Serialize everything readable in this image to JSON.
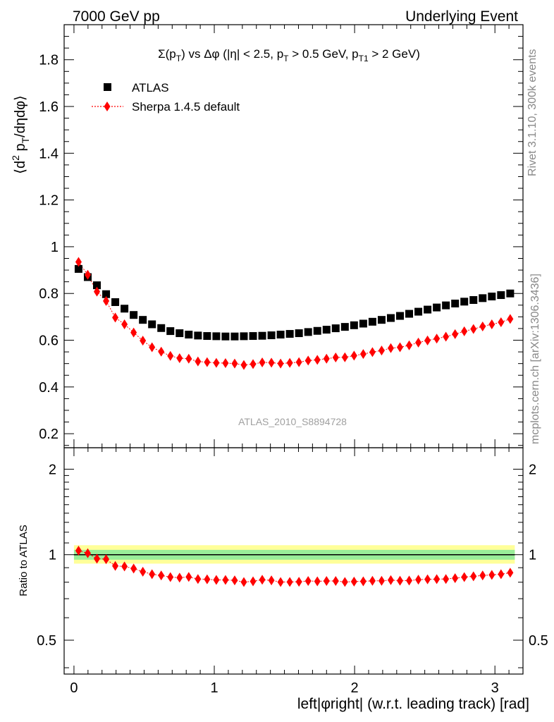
{
  "header": {
    "left": "7000 GeV pp",
    "right": "Underlying Event"
  },
  "side_labels": {
    "rivet": "Rivet 3.1.10,  300k events",
    "mcplots": "mcplots.cern.ch [arXiv:1306.3436]"
  },
  "chart_data": {
    "type": "scatter",
    "title": "Σ(p_T) vs Δφ (|η| < 2.5, p_T > 0.5 GeV, p_T1 > 2 GeV)",
    "watermark": "ATLAS_2010_S8894728",
    "xlabel": "left|φright| (w.r.t. leading track) [rad]",
    "ylabel_main": "⟨d² p_T/dηdφ⟩",
    "ylabel_ratio": "Ratio to ATLAS",
    "xlim": [
      -0.07,
      3.2
    ],
    "main_ylim": [
      0.14,
      1.95
    ],
    "ratio_ylim": [
      0.38,
      2.38
    ],
    "x_ticks": [
      0,
      1,
      2,
      3
    ],
    "main_y_ticks": [
      0.2,
      0.4,
      0.6,
      0.8,
      1,
      1.2,
      1.4,
      1.6,
      1.8
    ],
    "ratio_y_ticks": [
      0.5,
      1,
      2
    ],
    "ratio_band_inner": [
      0.96,
      1.04
    ],
    "ratio_band_outer": [
      0.93,
      1.08
    ],
    "x": [
      0.0327,
      0.0982,
      0.1636,
      0.2291,
      0.2945,
      0.36,
      0.4254,
      0.4909,
      0.5563,
      0.6218,
      0.6872,
      0.7527,
      0.8181,
      0.8836,
      0.949,
      1.0145,
      1.0799,
      1.1454,
      1.2108,
      1.2763,
      1.3417,
      1.4072,
      1.4726,
      1.5381,
      1.6035,
      1.669,
      1.7344,
      1.7999,
      1.8653,
      1.9308,
      1.9962,
      2.0617,
      2.1271,
      2.1926,
      2.258,
      2.3235,
      2.3889,
      2.4544,
      2.5198,
      2.5853,
      2.6507,
      2.7162,
      2.7816,
      2.8471,
      2.9125,
      2.978,
      3.0434,
      3.1089
    ],
    "series": [
      {
        "name": "ATLAS",
        "color": "#000000",
        "marker": "square",
        "values": [
          0.905,
          0.87,
          0.835,
          0.797,
          0.763,
          0.735,
          0.708,
          0.687,
          0.668,
          0.652,
          0.639,
          0.63,
          0.624,
          0.62,
          0.618,
          0.617,
          0.616,
          0.616,
          0.617,
          0.618,
          0.619,
          0.621,
          0.624,
          0.627,
          0.63,
          0.635,
          0.64,
          0.645,
          0.651,
          0.657,
          0.664,
          0.671,
          0.679,
          0.687,
          0.695,
          0.704,
          0.713,
          0.722,
          0.731,
          0.74,
          0.749,
          0.757,
          0.765,
          0.772,
          0.78,
          0.787,
          0.793,
          0.8
        ]
      },
      {
        "name": "Sherpa 1.4.5 default",
        "color": "#ff0000",
        "marker": "diamond",
        "values": [
          0.935,
          0.88,
          0.808,
          0.768,
          0.697,
          0.668,
          0.633,
          0.598,
          0.57,
          0.551,
          0.533,
          0.523,
          0.521,
          0.509,
          0.506,
          0.503,
          0.502,
          0.5,
          0.494,
          0.498,
          0.505,
          0.504,
          0.5,
          0.503,
          0.506,
          0.513,
          0.516,
          0.521,
          0.526,
          0.527,
          0.534,
          0.541,
          0.549,
          0.556,
          0.566,
          0.57,
          0.578,
          0.59,
          0.599,
          0.607,
          0.615,
          0.626,
          0.638,
          0.648,
          0.659,
          0.668,
          0.677,
          0.691
        ]
      }
    ],
    "ratio_values": [
      1.033,
      1.012,
      0.968,
      0.964,
      0.913,
      0.909,
      0.894,
      0.871,
      0.854,
      0.845,
      0.834,
      0.83,
      0.835,
      0.821,
      0.819,
      0.815,
      0.815,
      0.812,
      0.801,
      0.806,
      0.816,
      0.812,
      0.801,
      0.802,
      0.803,
      0.808,
      0.806,
      0.808,
      0.808,
      0.802,
      0.804,
      0.806,
      0.809,
      0.809,
      0.814,
      0.81,
      0.811,
      0.817,
      0.819,
      0.82,
      0.821,
      0.827,
      0.834,
      0.839,
      0.845,
      0.849,
      0.854,
      0.864
    ]
  }
}
